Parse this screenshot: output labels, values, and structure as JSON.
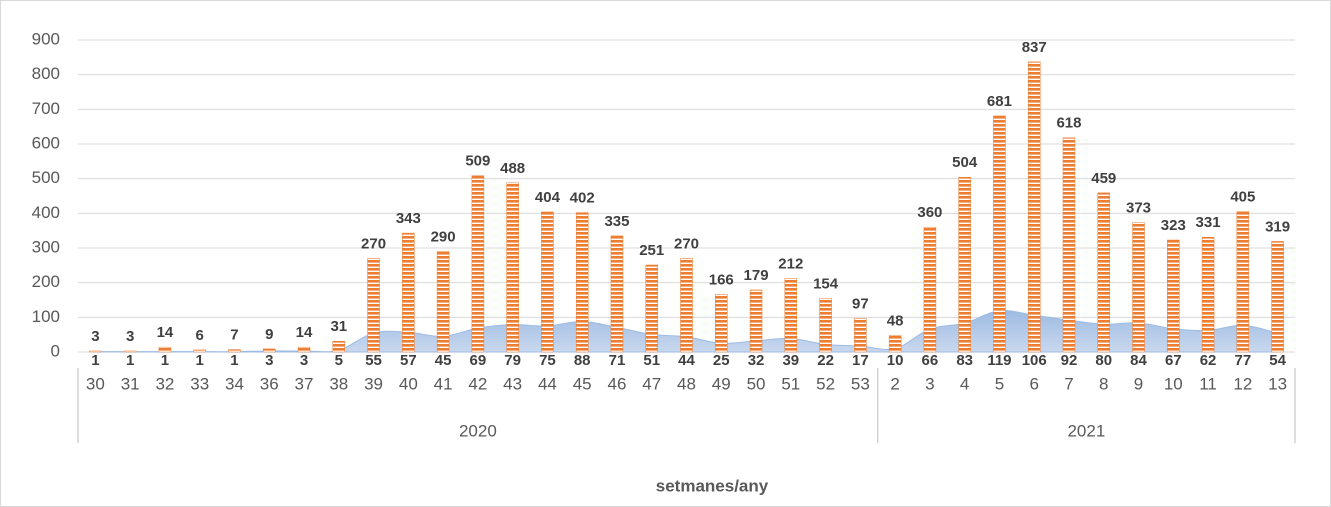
{
  "chart_data": {
    "type": "bar",
    "x_label": "setmanes/any",
    "category_groups": [
      {
        "label": "2020",
        "categories": [
          "30",
          "31",
          "32",
          "33",
          "34",
          "36",
          "37",
          "38",
          "39",
          "40",
          "41",
          "42",
          "43",
          "44",
          "45",
          "46",
          "47",
          "48",
          "49",
          "50",
          "51",
          "52",
          "53"
        ]
      },
      {
        "label": "2021",
        "categories": [
          "2",
          "3",
          "4",
          "5",
          "6",
          "7",
          "8",
          "9",
          "10",
          "11",
          "12",
          "13"
        ]
      }
    ],
    "series": [
      {
        "type": "bar",
        "color": "#ed7d31",
        "values": [
          3,
          3,
          14,
          6,
          7,
          9,
          14,
          31,
          270,
          343,
          290,
          509,
          488,
          404,
          402,
          335,
          251,
          270,
          166,
          179,
          212,
          154,
          97,
          48,
          360,
          504,
          681,
          837,
          618,
          459,
          373,
          323,
          331,
          405,
          319
        ]
      },
      {
        "type": "area",
        "color": "#9dbbe3",
        "values": [
          1,
          1,
          1,
          1,
          1,
          3,
          3,
          5,
          55,
          57,
          45,
          69,
          79,
          75,
          88,
          71,
          51,
          44,
          25,
          32,
          39,
          22,
          17,
          10,
          66,
          83,
          119,
          106,
          92,
          80,
          84,
          67,
          62,
          77,
          54
        ]
      }
    ],
    "ylim": [
      0,
      900
    ],
    "yticks": [
      0,
      100,
      200,
      300,
      400,
      500,
      600,
      700,
      800,
      900
    ],
    "grid": true
  }
}
